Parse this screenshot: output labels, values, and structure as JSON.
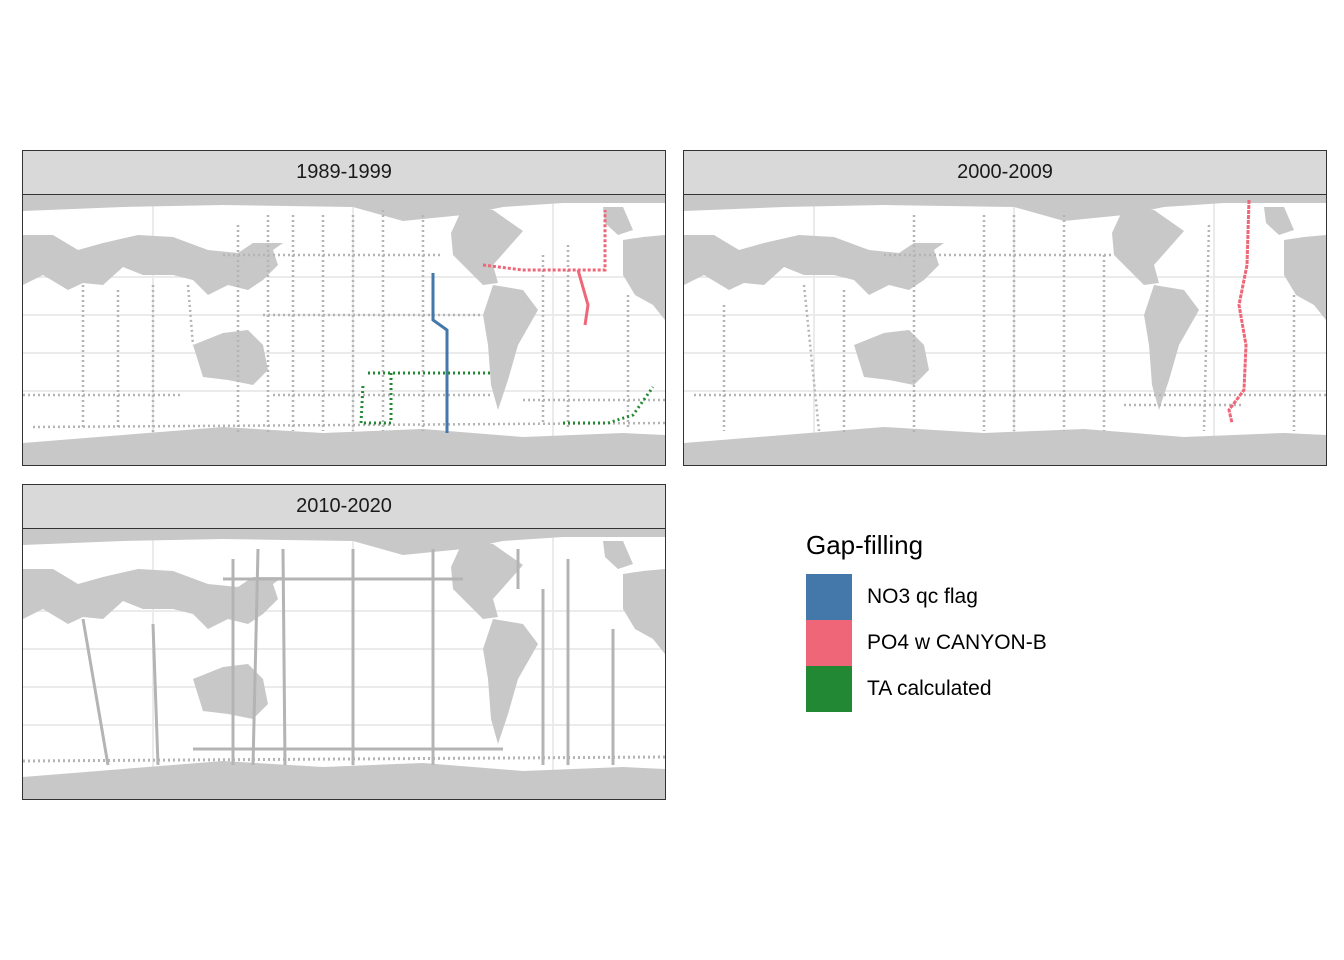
{
  "facets": [
    {
      "label": "1989-1999"
    },
    {
      "label": "2000-2009"
    },
    {
      "label": "2010-2020"
    }
  ],
  "legend": {
    "title": "Gap-filling",
    "items": [
      {
        "label": "NO3 qc flag",
        "color": "#4477AA"
      },
      {
        "label": "PO4 w CANYON-B",
        "color": "#EE6677"
      },
      {
        "label": "TA calculated",
        "color": "#228833"
      }
    ]
  },
  "colors": {
    "land": "#c8c8c8",
    "ocean": "#ffffff",
    "grid": "#ebebeb",
    "tracks": "#b4b4b4",
    "strip": "#d9d9d9"
  }
}
